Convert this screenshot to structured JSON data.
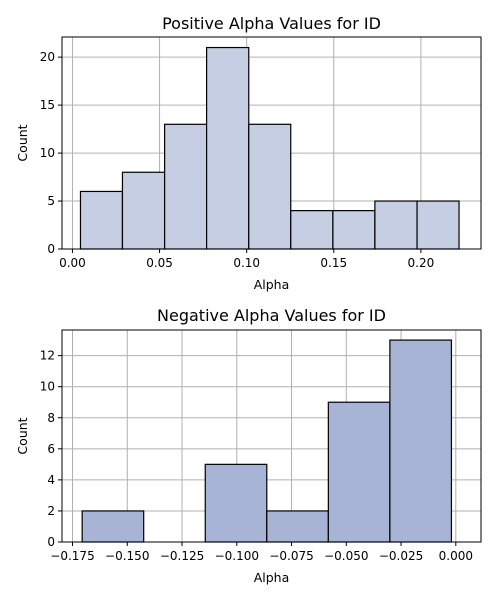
{
  "chart_data": [
    {
      "type": "bar",
      "title": "Positive Alpha Values for ID",
      "xlabel": "Alpha",
      "ylabel": "Count",
      "xlim": [
        -0.006,
        0.2345
      ],
      "ylim": [
        0,
        22.1
      ],
      "xticks": [
        0.0,
        0.05,
        0.1,
        0.15,
        0.2
      ],
      "xtick_labels": [
        "0.00",
        "0.05",
        "0.10",
        "0.15",
        "0.20"
      ],
      "yticks": [
        0,
        5,
        10,
        15,
        20
      ],
      "ytick_labels": [
        "0",
        "5",
        "10",
        "15",
        "20"
      ],
      "grid": true,
      "bar_color": "#c5cee3",
      "bins": [
        {
          "x0": 0.0046,
          "x1": 0.0287,
          "value": 6
        },
        {
          "x0": 0.0287,
          "x1": 0.0529,
          "value": 8
        },
        {
          "x0": 0.0529,
          "x1": 0.077,
          "value": 13
        },
        {
          "x0": 0.077,
          "x1": 0.1012,
          "value": 21
        },
        {
          "x0": 0.1012,
          "x1": 0.1253,
          "value": 13
        },
        {
          "x0": 0.1253,
          "x1": 0.1495,
          "value": 4
        },
        {
          "x0": 0.1495,
          "x1": 0.1736,
          "value": 4
        },
        {
          "x0": 0.1736,
          "x1": 0.1978,
          "value": 5
        },
        {
          "x0": 0.1978,
          "x1": 0.2219,
          "value": 5
        }
      ]
    },
    {
      "type": "bar",
      "title": "Negative Alpha Values for ID",
      "xlabel": "Alpha",
      "ylabel": "Count",
      "xlim": [
        -0.1798,
        0.0115
      ],
      "ylim": [
        0,
        13.65
      ],
      "xticks": [
        -0.175,
        -0.15,
        -0.125,
        -0.1,
        -0.075,
        -0.05,
        -0.025,
        0.0
      ],
      "xtick_labels": [
        "−0.175",
        "−0.150",
        "−0.125",
        "−0.100",
        "−0.075",
        "−0.050",
        "−0.025",
        "0.000"
      ],
      "yticks": [
        0,
        2,
        4,
        6,
        8,
        10,
        12
      ],
      "ytick_labels": [
        "0",
        "2",
        "4",
        "6",
        "8",
        "10",
        "12"
      ],
      "grid": true,
      "bar_color": "#a7b4d6",
      "bins": [
        {
          "x0": -0.1706,
          "x1": -0.1425,
          "value": 2
        },
        {
          "x0": -0.1425,
          "x1": -0.1144,
          "value": 0
        },
        {
          "x0": -0.1144,
          "x1": -0.0863,
          "value": 5
        },
        {
          "x0": -0.0863,
          "x1": -0.0582,
          "value": 2
        },
        {
          "x0": -0.0582,
          "x1": -0.0301,
          "value": 9
        },
        {
          "x0": -0.0301,
          "x1": -0.002,
          "value": 13
        }
      ]
    }
  ]
}
